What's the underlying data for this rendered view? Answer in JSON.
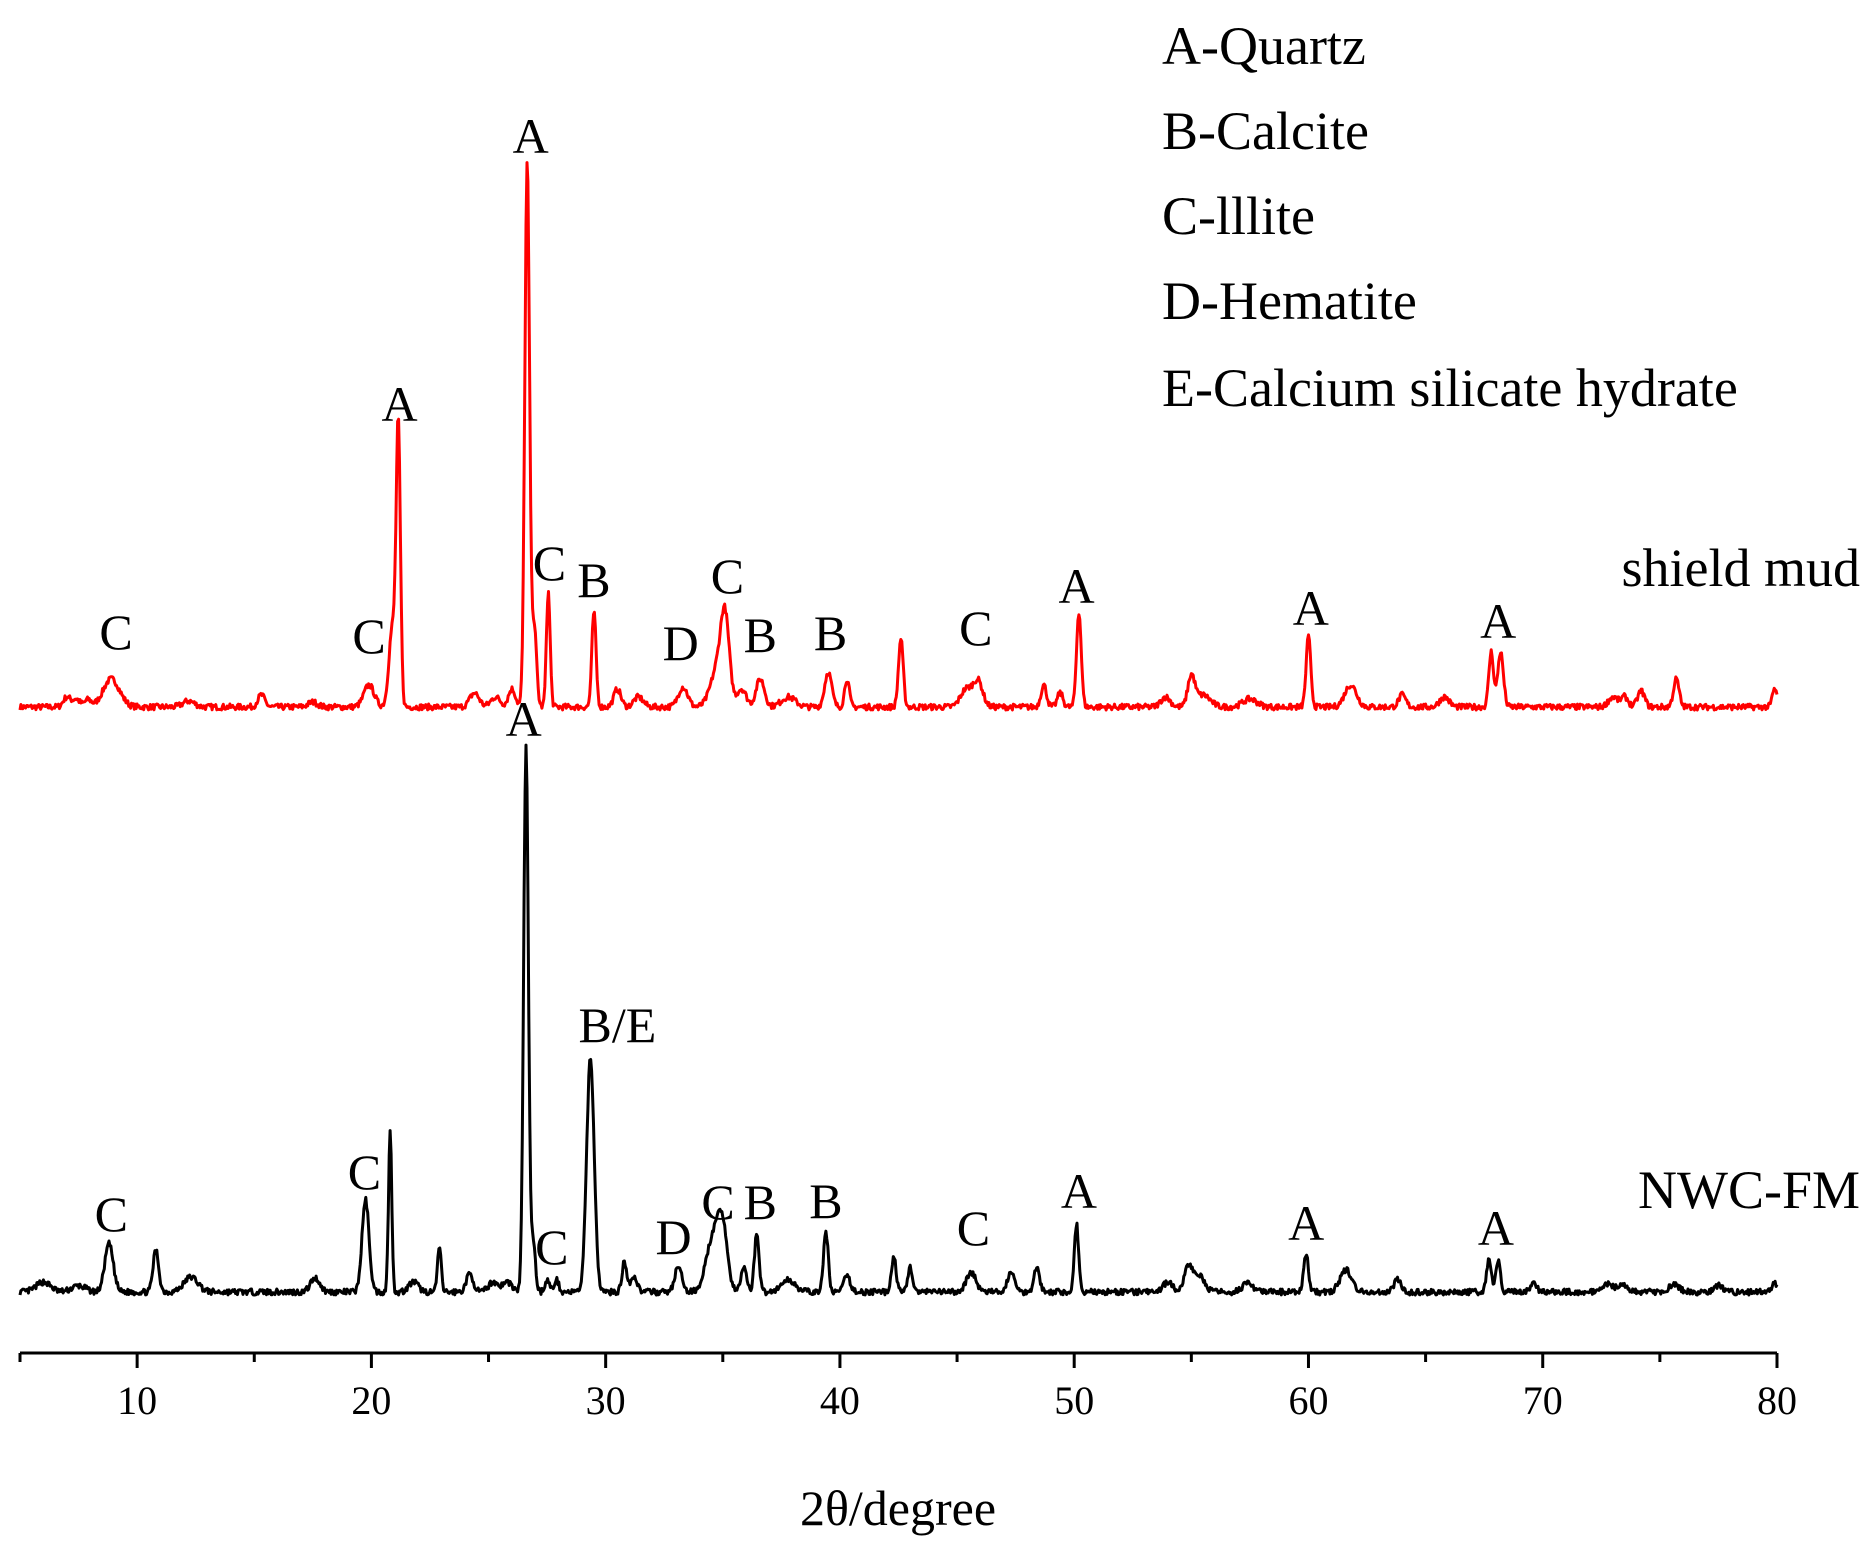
{
  "chart_data": {
    "type": "line",
    "xlabel": "2θ/degree",
    "ylabel": "",
    "xlim": [
      5,
      80
    ],
    "x_ticks": [
      10,
      20,
      30,
      40,
      50,
      60,
      70,
      80
    ],
    "grid": false,
    "y_axis_shown": false,
    "legend_position": "top-right",
    "legend": [
      "A-Quartz",
      "B-Calcite",
      "C-lllite",
      "D-Hematite",
      "E-Calcium silicate hydrate"
    ],
    "series": [
      {
        "name": "shield mud",
        "color": "#ff0000",
        "baseline": 0,
        "noise_seed": 7,
        "peaks": [
          [
            7.0,
            10,
            0.15
          ],
          [
            7.4,
            8,
            0.15
          ],
          [
            7.9,
            7,
            0.15
          ],
          [
            8.9,
            28,
            0.35
          ],
          [
            12.2,
            6,
            0.25
          ],
          [
            15.3,
            12,
            0.15
          ],
          [
            17.5,
            5,
            0.2
          ],
          [
            19.9,
            22,
            0.22
          ],
          [
            20.9,
            80,
            0.15
          ],
          [
            21.15,
            270,
            0.09
          ],
          [
            24.4,
            14,
            0.2
          ],
          [
            25.3,
            10,
            0.2
          ],
          [
            26.0,
            18,
            0.15
          ],
          [
            26.65,
            545,
            0.1
          ],
          [
            26.95,
            80,
            0.1
          ],
          [
            27.55,
            115,
            0.08
          ],
          [
            29.5,
            95,
            0.09
          ],
          [
            30.5,
            18,
            0.15
          ],
          [
            31.4,
            10,
            0.2
          ],
          [
            33.3,
            20,
            0.2
          ],
          [
            34.8,
            40,
            0.3
          ],
          [
            35.1,
            75,
            0.18
          ],
          [
            35.8,
            18,
            0.2
          ],
          [
            36.6,
            28,
            0.18
          ],
          [
            37.8,
            10,
            0.3
          ],
          [
            39.5,
            35,
            0.15
          ],
          [
            40.3,
            28,
            0.1
          ],
          [
            42.6,
            68,
            0.1
          ],
          [
            45.4,
            18,
            0.25
          ],
          [
            45.9,
            25,
            0.2
          ],
          [
            48.7,
            22,
            0.12
          ],
          [
            49.4,
            14,
            0.12
          ],
          [
            50.2,
            95,
            0.1
          ],
          [
            53.9,
            10,
            0.2
          ],
          [
            55.0,
            30,
            0.15
          ],
          [
            55.5,
            12,
            0.3
          ],
          [
            57.5,
            8,
            0.3
          ],
          [
            60.0,
            70,
            0.1
          ],
          [
            61.8,
            22,
            0.25
          ],
          [
            64.0,
            12,
            0.15
          ],
          [
            65.8,
            10,
            0.2
          ],
          [
            67.8,
            55,
            0.1
          ],
          [
            68.2,
            55,
            0.12
          ],
          [
            73.0,
            10,
            0.2
          ],
          [
            73.5,
            10,
            0.15
          ],
          [
            74.2,
            16,
            0.15
          ],
          [
            75.7,
            28,
            0.12
          ],
          [
            79.9,
            18,
            0.1
          ]
        ]
      },
      {
        "name": "NWC-FM",
        "color": "#000000",
        "baseline": 0,
        "noise_seed": 13,
        "peaks": [
          [
            6.0,
            10,
            0.3
          ],
          [
            7.5,
            6,
            0.3
          ],
          [
            8.8,
            48,
            0.18
          ],
          [
            10.8,
            42,
            0.12
          ],
          [
            12.3,
            15,
            0.3
          ],
          [
            17.6,
            14,
            0.2
          ],
          [
            19.75,
            92,
            0.15
          ],
          [
            20.8,
            160,
            0.07
          ],
          [
            21.8,
            10,
            0.2
          ],
          [
            22.9,
            45,
            0.08
          ],
          [
            24.2,
            18,
            0.15
          ],
          [
            25.2,
            10,
            0.2
          ],
          [
            25.8,
            10,
            0.2
          ],
          [
            26.6,
            545,
            0.1
          ],
          [
            26.9,
            50,
            0.1
          ],
          [
            27.5,
            12,
            0.1
          ],
          [
            27.9,
            12,
            0.1
          ],
          [
            29.35,
            235,
            0.16
          ],
          [
            30.8,
            30,
            0.1
          ],
          [
            31.2,
            15,
            0.15
          ],
          [
            33.1,
            25,
            0.15
          ],
          [
            34.6,
            55,
            0.3
          ],
          [
            35.0,
            55,
            0.2
          ],
          [
            35.9,
            25,
            0.12
          ],
          [
            36.45,
            58,
            0.1
          ],
          [
            37.8,
            12,
            0.3
          ],
          [
            39.4,
            60,
            0.1
          ],
          [
            40.3,
            15,
            0.15
          ],
          [
            42.3,
            35,
            0.1
          ],
          [
            43.0,
            25,
            0.1
          ],
          [
            45.6,
            20,
            0.2
          ],
          [
            47.3,
            20,
            0.15
          ],
          [
            48.4,
            25,
            0.12
          ],
          [
            50.1,
            68,
            0.09
          ],
          [
            54.0,
            10,
            0.2
          ],
          [
            54.9,
            28,
            0.18
          ],
          [
            55.4,
            15,
            0.2
          ],
          [
            57.4,
            8,
            0.25
          ],
          [
            59.9,
            38,
            0.1
          ],
          [
            61.6,
            22,
            0.25
          ],
          [
            63.8,
            12,
            0.15
          ],
          [
            67.7,
            32,
            0.1
          ],
          [
            68.1,
            30,
            0.1
          ],
          [
            69.6,
            8,
            0.15
          ],
          [
            72.8,
            8,
            0.2
          ],
          [
            73.4,
            8,
            0.2
          ],
          [
            75.6,
            8,
            0.2
          ],
          [
            77.5,
            6,
            0.2
          ],
          [
            79.9,
            10,
            0.1
          ]
        ]
      }
    ],
    "annotations": [
      {
        "series": "shield mud",
        "x": 9.1,
        "y": 59,
        "text": "C"
      },
      {
        "series": "shield mud",
        "x": 19.9,
        "y": 55,
        "text": "C"
      },
      {
        "series": "shield mud",
        "x": 21.2,
        "y": 287,
        "text": "A"
      },
      {
        "series": "shield mud",
        "x": 26.8,
        "y": 555,
        "text": "A"
      },
      {
        "series": "shield mud",
        "x": 27.6,
        "y": 128,
        "text": "C"
      },
      {
        "series": "shield mud",
        "x": 29.5,
        "y": 111,
        "text": "B"
      },
      {
        "series": "shield mud",
        "x": 33.2,
        "y": 48,
        "text": "D"
      },
      {
        "series": "shield mud",
        "x": 35.2,
        "y": 115,
        "text": "C"
      },
      {
        "series": "shield mud",
        "x": 36.6,
        "y": 56,
        "text": "B"
      },
      {
        "series": "shield mud",
        "x": 39.6,
        "y": 58,
        "text": "B"
      },
      {
        "series": "shield mud",
        "x": 45.8,
        "y": 63,
        "text": "C"
      },
      {
        "series": "shield mud",
        "x": 50.1,
        "y": 105,
        "text": "A"
      },
      {
        "series": "shield mud",
        "x": 60.1,
        "y": 83,
        "text": "A"
      },
      {
        "series": "shield mud",
        "x": 68.1,
        "y": 70,
        "text": "A"
      },
      {
        "series": "NWC-FM",
        "x": 8.9,
        "y": 62,
        "text": "C"
      },
      {
        "series": "NWC-FM",
        "x": 19.7,
        "y": 104,
        "text": "C"
      },
      {
        "series": "NWC-FM",
        "x": 26.5,
        "y": 557,
        "text": "A"
      },
      {
        "series": "NWC-FM",
        "x": 27.7,
        "y": 29,
        "text": "C"
      },
      {
        "series": "NWC-FM",
        "x": 30.5,
        "y": 251,
        "text": "B/E"
      },
      {
        "series": "NWC-FM",
        "x": 32.9,
        "y": 39,
        "text": "D"
      },
      {
        "series": "NWC-FM",
        "x": 34.8,
        "y": 74,
        "text": "C"
      },
      {
        "series": "NWC-FM",
        "x": 36.6,
        "y": 74,
        "text": "B"
      },
      {
        "series": "NWC-FM",
        "x": 39.4,
        "y": 75,
        "text": "B"
      },
      {
        "series": "NWC-FM",
        "x": 45.7,
        "y": 48,
        "text": "C"
      },
      {
        "series": "NWC-FM",
        "x": 50.2,
        "y": 85,
        "text": "A"
      },
      {
        "series": "NWC-FM",
        "x": 59.9,
        "y": 53,
        "text": "A"
      },
      {
        "series": "NWC-FM",
        "x": 68.0,
        "y": 48,
        "text": "A"
      }
    ]
  }
}
